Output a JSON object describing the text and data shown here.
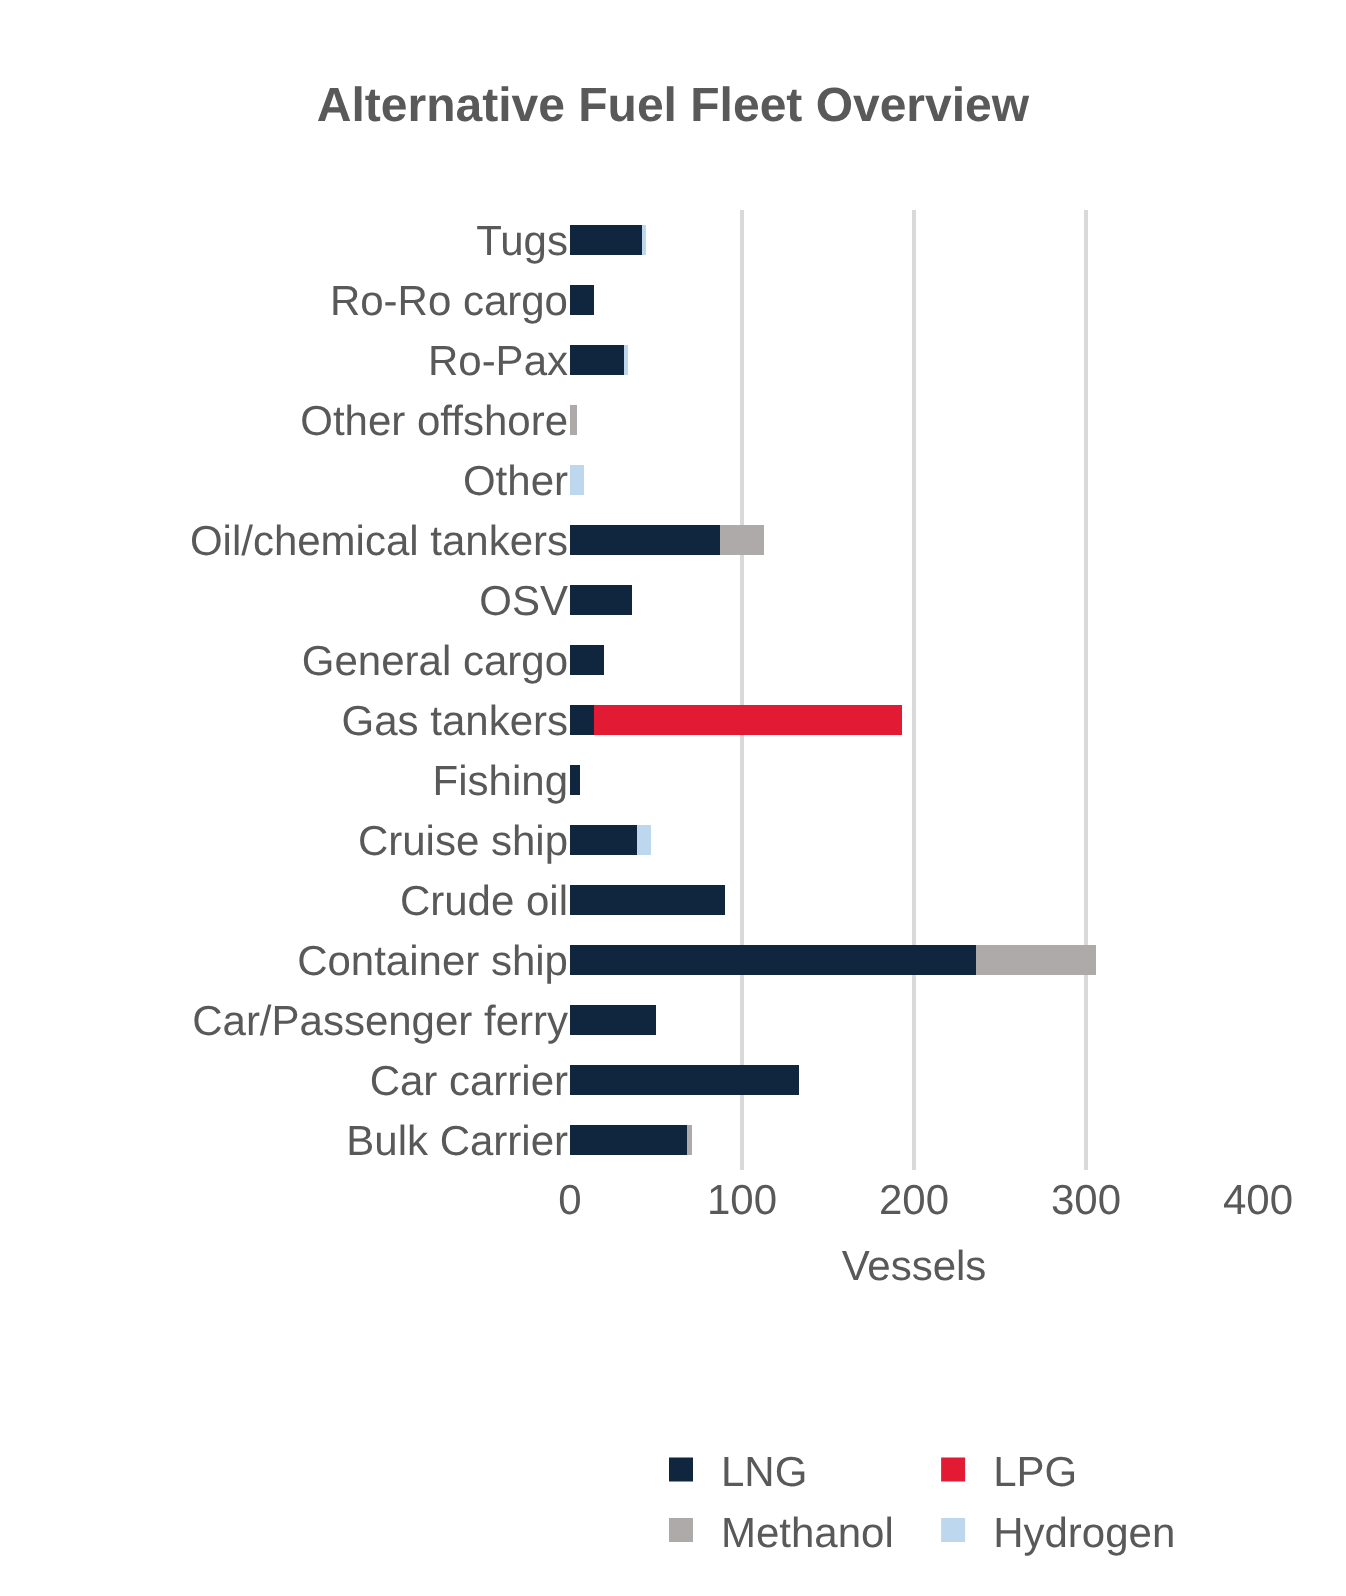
{
  "chart_data": {
    "type": "bar",
    "orientation": "horizontal",
    "stacked": true,
    "title": "Alternative Fuel Fleet Overview",
    "xlabel": "Vessels",
    "categories": [
      "Tugs",
      "Ro-Ro cargo",
      "Ro-Pax",
      "Other offshore",
      "Other",
      "Oil/chemical tankers",
      "OSV",
      "General cargo",
      "Gas tankers",
      "Fishing",
      "Cruise ship",
      "Crude oil",
      "Container ship",
      "Car/Passenger ferry",
      "Car carrier",
      "Bulk Carrier"
    ],
    "series": [
      {
        "name": "LNG",
        "color": "#10263f",
        "values": [
          42,
          14,
          32,
          null,
          null,
          87,
          36,
          20,
          14,
          6,
          39,
          90,
          236,
          50,
          133,
          68
        ]
      },
      {
        "name": "LPG",
        "color": "#e21a33",
        "values": [
          null,
          null,
          null,
          null,
          null,
          null,
          null,
          null,
          179,
          null,
          null,
          null,
          null,
          null,
          null,
          null
        ]
      },
      {
        "name": "Methanol",
        "color": "#aeaaaa",
        "values": [
          null,
          null,
          null,
          4,
          null,
          26,
          null,
          null,
          null,
          null,
          null,
          null,
          70,
          null,
          null,
          3
        ]
      },
      {
        "name": "Hydrogen",
        "color": "#bdd7ee",
        "values": [
          2,
          null,
          2,
          null,
          8,
          null,
          null,
          null,
          null,
          null,
          8,
          null,
          null,
          null,
          null,
          null
        ]
      }
    ],
    "xlim": [
      0,
      400
    ],
    "xticks": [
      0,
      100,
      200,
      300,
      400
    ],
    "grid": "x",
    "legend": "bottom"
  }
}
